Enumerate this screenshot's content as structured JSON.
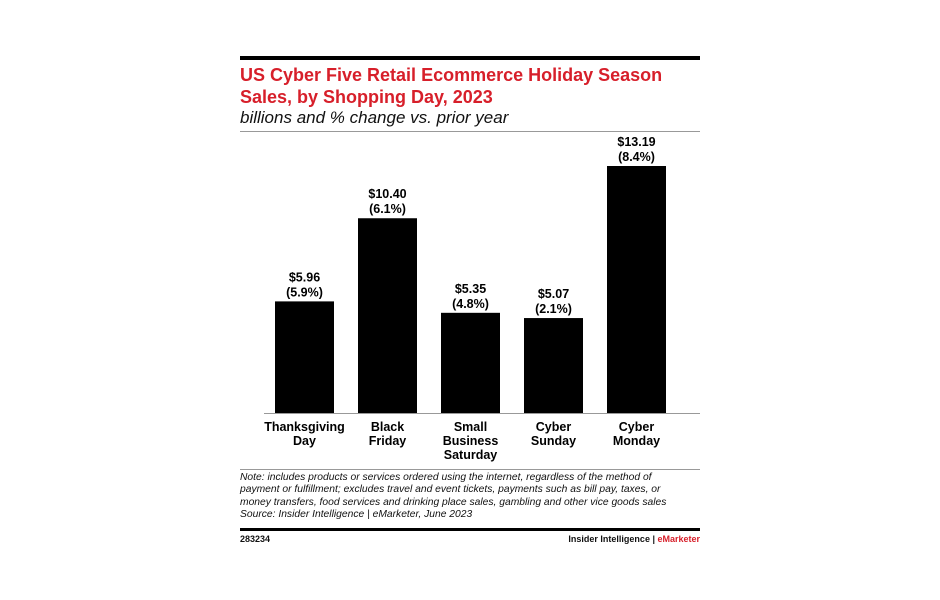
{
  "header": {
    "title": "US Cyber Five Retail Ecommerce Holiday Season Sales, by Shopping Day, 2023",
    "subtitle": "billions and % change vs. prior year"
  },
  "chart_data": {
    "type": "bar",
    "categories": [
      [
        "Thanksgiving",
        "Day"
      ],
      [
        "Black",
        "Friday"
      ],
      [
        "Small",
        "Business",
        "Saturday"
      ],
      [
        "Cyber",
        "Sunday"
      ],
      [
        "Cyber",
        "Monday"
      ]
    ],
    "values": [
      5.96,
      10.4,
      5.35,
      5.07,
      13.19
    ],
    "value_labels": [
      "$5.96",
      "$10.40",
      "$5.35",
      "$5.07",
      "$13.19"
    ],
    "change_labels": [
      "(5.9%)",
      "(6.1%)",
      "(4.8%)",
      "(2.1%)",
      "(8.4%)"
    ],
    "ylim": [
      0,
      14
    ],
    "bar_color": "#000000",
    "grid": false
  },
  "note": {
    "lines": [
      "Note: includes products or services ordered using the internet, regardless of the method of",
      "payment or fulfillment; excludes travel and event tickets, payments such as bill pay, taxes, or",
      "money transfers, food services and drinking place sales, gambling and other vice goods sales",
      "Source: Insider Intelligence | eMarketer, June 2023"
    ]
  },
  "footer": {
    "chart_id": "283234",
    "brand_main": "Insider Intelligence | ",
    "brand_accent": "eMarketer"
  },
  "colors": {
    "title": "#d71f2a",
    "bars": "#000000"
  }
}
